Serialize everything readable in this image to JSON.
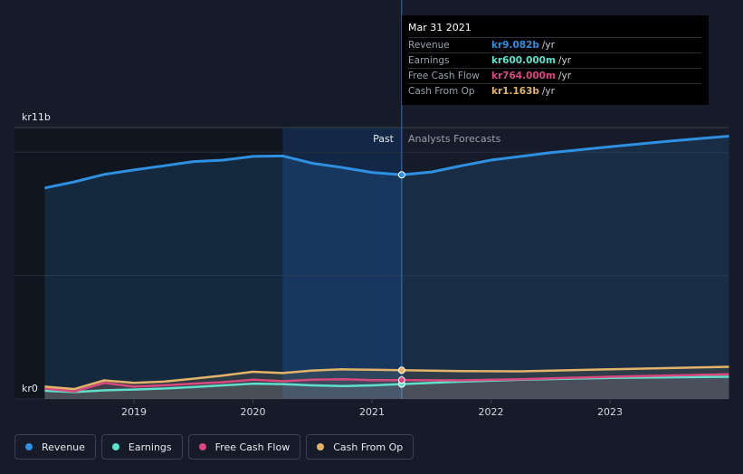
{
  "chart_data": {
    "type": "line",
    "y_unit_label_top": "kr11b",
    "y_unit_label_bottom": "kr0",
    "ylim": [
      0,
      11
    ],
    "xlim": [
      2018.25,
      2024.0
    ],
    "x_ticks": [
      "2019",
      "2020",
      "2021",
      "2022",
      "2023"
    ],
    "past_label": "Past",
    "forecast_label": "Analysts Forecasts",
    "divider_x": 2021.25,
    "series": [
      {
        "name": "Revenue",
        "color": "#2f8fe0",
        "points": [
          [
            2018.25,
            8.55
          ],
          [
            2018.5,
            8.8
          ],
          [
            2018.75,
            9.1
          ],
          [
            2019.0,
            9.28
          ],
          [
            2019.25,
            9.45
          ],
          [
            2019.5,
            9.62
          ],
          [
            2019.75,
            9.68
          ],
          [
            2020.0,
            9.83
          ],
          [
            2020.25,
            9.85
          ],
          [
            2020.5,
            9.55
          ],
          [
            2020.75,
            9.38
          ],
          [
            2021.0,
            9.18
          ],
          [
            2021.25,
            9.082
          ],
          [
            2021.5,
            9.2
          ],
          [
            2021.75,
            9.45
          ],
          [
            2022.0,
            9.68
          ],
          [
            2022.5,
            9.98
          ],
          [
            2023.0,
            10.22
          ],
          [
            2023.5,
            10.45
          ],
          [
            2024.0,
            10.65
          ]
        ]
      },
      {
        "name": "Earnings",
        "color": "#5ee0cc",
        "points": [
          [
            2018.25,
            0.33
          ],
          [
            2018.5,
            0.28
          ],
          [
            2018.75,
            0.35
          ],
          [
            2019.0,
            0.38
          ],
          [
            2019.25,
            0.42
          ],
          [
            2019.5,
            0.48
          ],
          [
            2019.75,
            0.55
          ],
          [
            2020.0,
            0.62
          ],
          [
            2020.25,
            0.6
          ],
          [
            2020.5,
            0.55
          ],
          [
            2020.75,
            0.52
          ],
          [
            2021.0,
            0.55
          ],
          [
            2021.25,
            0.6
          ],
          [
            2021.75,
            0.7
          ],
          [
            2022.25,
            0.78
          ],
          [
            2023.0,
            0.85
          ],
          [
            2024.0,
            0.9
          ]
        ]
      },
      {
        "name": "Free Cash Flow",
        "color": "#d9487f",
        "points": [
          [
            2018.25,
            0.42
          ],
          [
            2018.5,
            0.3
          ],
          [
            2018.75,
            0.65
          ],
          [
            2019.0,
            0.5
          ],
          [
            2019.25,
            0.55
          ],
          [
            2019.5,
            0.62
          ],
          [
            2019.75,
            0.68
          ],
          [
            2020.0,
            0.78
          ],
          [
            2020.25,
            0.72
          ],
          [
            2020.5,
            0.78
          ],
          [
            2020.75,
            0.8
          ],
          [
            2021.0,
            0.76
          ],
          [
            2021.25,
            0.764
          ],
          [
            2021.75,
            0.75
          ],
          [
            2022.25,
            0.8
          ],
          [
            2023.0,
            0.9
          ],
          [
            2024.0,
            1.0
          ]
        ]
      },
      {
        "name": "Cash From Op",
        "color": "#e2b46a",
        "points": [
          [
            2018.25,
            0.5
          ],
          [
            2018.5,
            0.4
          ],
          [
            2018.75,
            0.75
          ],
          [
            2019.0,
            0.65
          ],
          [
            2019.25,
            0.7
          ],
          [
            2019.5,
            0.82
          ],
          [
            2019.75,
            0.95
          ],
          [
            2020.0,
            1.1
          ],
          [
            2020.25,
            1.05
          ],
          [
            2020.5,
            1.15
          ],
          [
            2020.75,
            1.2
          ],
          [
            2021.0,
            1.18
          ],
          [
            2021.25,
            1.163
          ],
          [
            2021.75,
            1.13
          ],
          [
            2022.25,
            1.12
          ],
          [
            2023.0,
            1.2
          ],
          [
            2024.0,
            1.3
          ]
        ]
      }
    ]
  },
  "tooltip": {
    "date": "Mar 31 2021",
    "rows": [
      {
        "label": "Revenue",
        "value": "kr9.082b",
        "unit": "/yr",
        "color": "#2f8fe0"
      },
      {
        "label": "Earnings",
        "value": "kr600.000m",
        "unit": "/yr",
        "color": "#5ee0cc"
      },
      {
        "label": "Free Cash Flow",
        "value": "kr764.000m",
        "unit": "/yr",
        "color": "#d9487f"
      },
      {
        "label": "Cash From Op",
        "value": "kr1.163b",
        "unit": "/yr",
        "color": "#e2b46a"
      }
    ]
  },
  "legend": [
    {
      "label": "Revenue",
      "color": "#2f8fe0"
    },
    {
      "label": "Earnings",
      "color": "#5ee0cc"
    },
    {
      "label": "Free Cash Flow",
      "color": "#d9487f"
    },
    {
      "label": "Cash From Op",
      "color": "#e2b46a"
    }
  ]
}
